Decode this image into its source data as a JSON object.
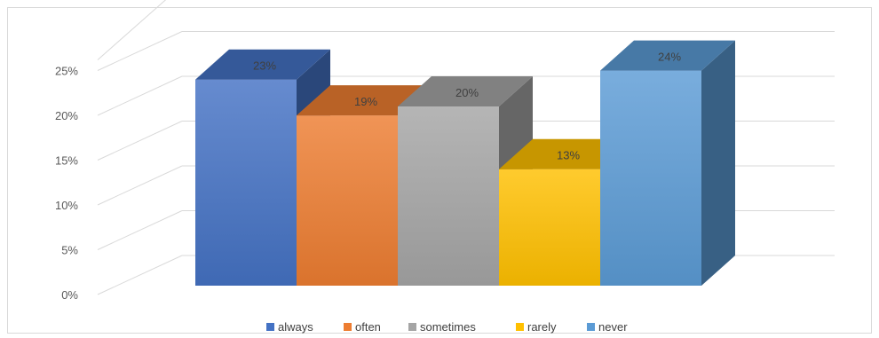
{
  "chart_data": {
    "type": "bar",
    "variant": "3d-column",
    "categories": [
      "always",
      "often",
      "sometimes",
      "rarely",
      "never"
    ],
    "values": [
      23,
      19,
      20,
      13,
      24
    ],
    "data_labels": [
      "23%",
      "19%",
      "20%",
      "13%",
      "24%"
    ],
    "colors": [
      "#4472C4",
      "#ED7D31",
      "#A5A5A5",
      "#FFC000",
      "#5B9BD5"
    ],
    "yticks": [
      {
        "value": 0,
        "label": "0%"
      },
      {
        "value": 5,
        "label": "5%"
      },
      {
        "value": 10,
        "label": "10%"
      },
      {
        "value": 15,
        "label": "15%"
      },
      {
        "value": 20,
        "label": "20%"
      },
      {
        "value": 25,
        "label": "25%"
      }
    ],
    "ylim": [
      0,
      25
    ],
    "grid": true,
    "legend": "bottom",
    "title": "",
    "xlabel": "",
    "ylabel": ""
  }
}
